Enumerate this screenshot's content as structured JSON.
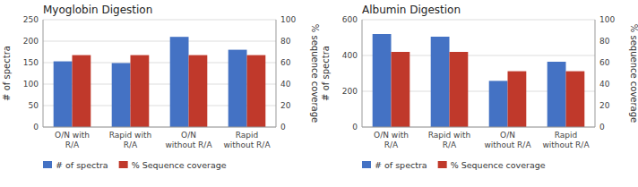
{
  "chart_data": [
    {
      "type": "bar",
      "title": "Myoglobin Digestion",
      "categories": [
        "O/N with\nR/A",
        "Rapid with\nR/A",
        "O/N\nwithout R/A",
        "Rapid\nwithout R/A"
      ],
      "series": [
        {
          "name": "# of spectra",
          "color": "#4472C4",
          "values": [
            153,
            149,
            210,
            180
          ]
        },
        {
          "name": "% Sequence coverage",
          "color": "#C0392B",
          "values": [
            67,
            67,
            67,
            67
          ],
          "axis": "y2"
        }
      ],
      "y_label": "# of spectra",
      "y2_label": "% sequence coverage",
      "ylim": [
        0,
        250
      ],
      "yticks": [
        0,
        50,
        100,
        150,
        200,
        250
      ],
      "y2lim": [
        0,
        100
      ],
      "y2ticks": [
        0,
        20,
        40,
        60,
        80,
        100
      ],
      "grid": true,
      "legend": "bottom"
    },
    {
      "type": "bar",
      "title": "Albumin Digestion",
      "categories": [
        "O/N with\nR/A",
        "Rapid with\nR/A",
        "O/N\nwithout R/A",
        "Rapid\nwithout R/A"
      ],
      "series": [
        {
          "name": "# of spectra",
          "color": "#4472C4",
          "values": [
            520,
            505,
            258,
            365
          ]
        },
        {
          "name": "% Sequence coverage",
          "color": "#C0392B",
          "values": [
            70,
            70,
            52,
            52
          ],
          "axis": "y2"
        }
      ],
      "y_label": "# of spectra",
      "y2_label": "% sequence coverage",
      "ylim": [
        0,
        600
      ],
      "yticks": [
        0,
        200,
        400,
        600
      ],
      "y2lim": [
        0,
        100
      ],
      "y2ticks": [
        0,
        20,
        40,
        60,
        80,
        100
      ],
      "grid": true,
      "legend": "bottom"
    }
  ]
}
